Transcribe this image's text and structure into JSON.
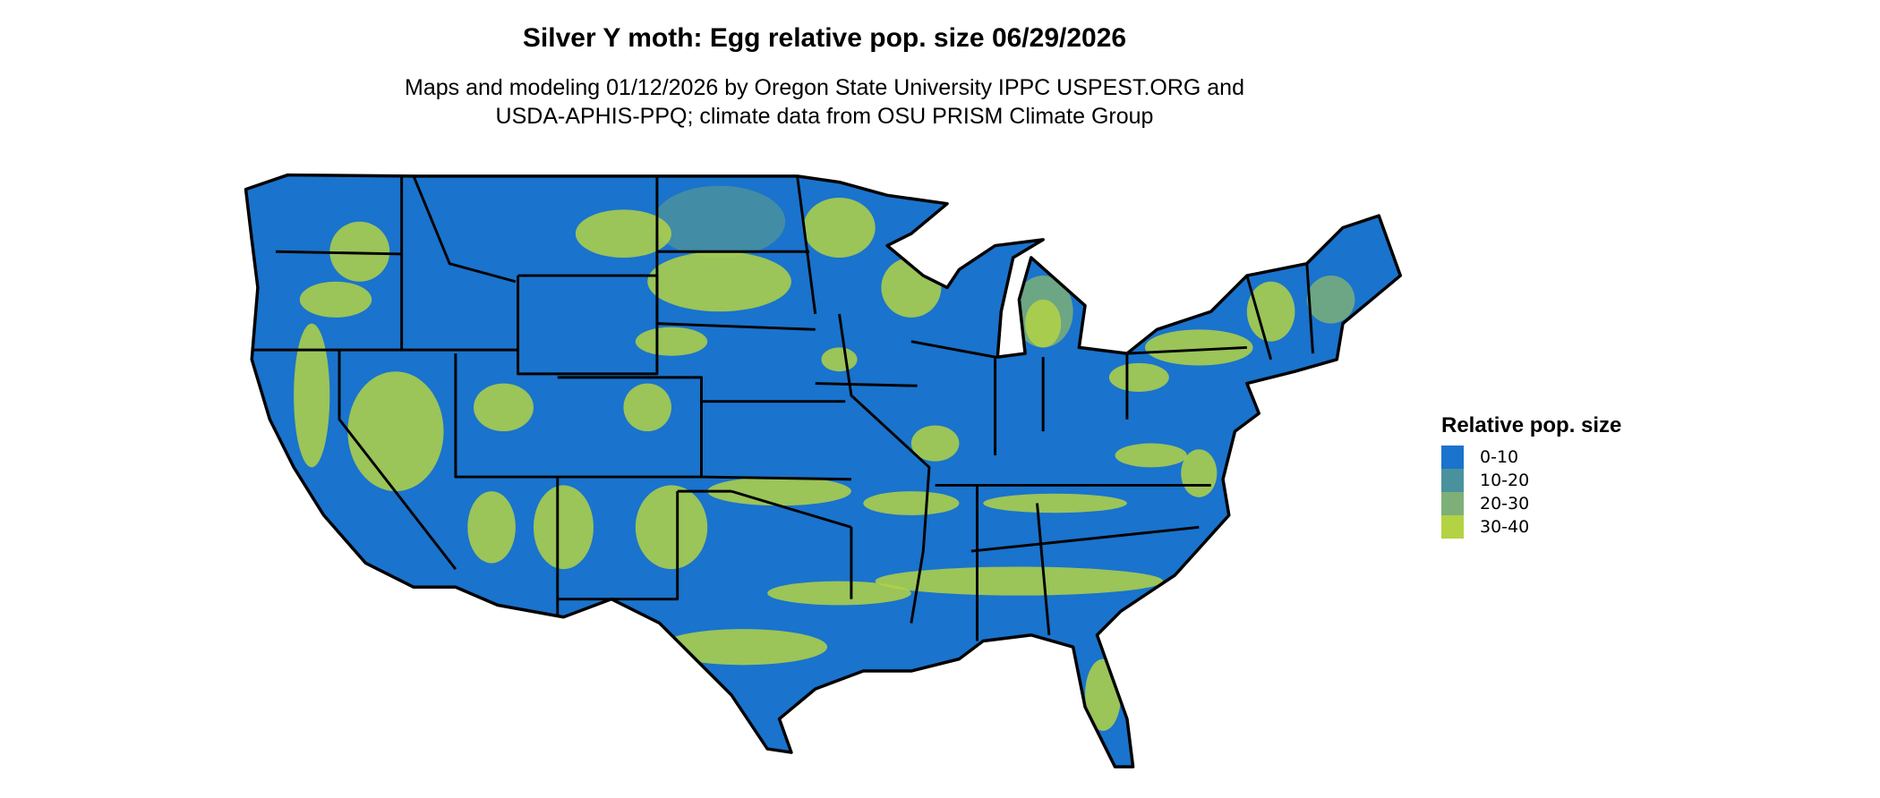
{
  "title": "Silver Y moth: Egg relative pop. size 06/29/2026",
  "subtitle_lines": [
    "Maps and modeling 01/12/2026 by Oregon State University IPPC USPEST.ORG and",
    "USDA-APHIS-PPQ; climate data from OSU PRISM Climate Group"
  ],
  "legend": {
    "title": "Relative pop. size",
    "items": [
      {
        "label": "0-10",
        "color": "#1a73cc"
      },
      {
        "label": "10-20",
        "color": "#4a919e"
      },
      {
        "label": "20-30",
        "color": "#7daf78"
      },
      {
        "label": "30-40",
        "color": "#b3d244"
      }
    ]
  },
  "map": {
    "background_color": "#1a73cc",
    "border_color": "#000000"
  }
}
